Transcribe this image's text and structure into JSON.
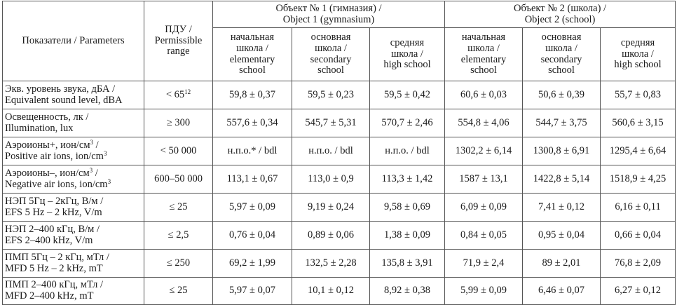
{
  "header": {
    "indicator": "Показатели / Parameters",
    "limit": [
      "ПДУ /",
      "Permissible",
      "range"
    ],
    "object1": [
      "Объект № 1 (гимназия) /",
      "Object 1 (gymnasium)"
    ],
    "object2": [
      "Объект № 2 (школа) /",
      "Object 2 (school)"
    ],
    "levels": [
      [
        "начальная",
        "школа /",
        "elementary",
        "school"
      ],
      [
        "основная",
        "школа /",
        "secondary",
        "school"
      ],
      [
        "средняя",
        "школа /",
        "high school"
      ]
    ]
  },
  "rows": [
    {
      "p1": "Экв. уровень звука, дБА /",
      "p2": "Equivalent sound level, dBA",
      "limit": "< 65",
      "limit_sup": "12",
      "v": [
        "59,8 ± 0,37",
        "59,5 ± 0,23",
        "59,5 ± 0,42",
        "60,6 ± 0,03",
        "50,6 ± 0,39",
        "55,7 ± 0,83"
      ]
    },
    {
      "p1": "Освещенность, лк /",
      "p2": "Illumination, lux",
      "limit": "≥ 300",
      "limit_sup": "",
      "v": [
        "557,6 ± 0,34",
        "545,7 ± 5,31",
        "570,7 ± 2,46",
        "554,8 ± 4,06",
        "544,7 ± 3,75",
        "560,6 ± 3,15"
      ]
    },
    {
      "p1": "Аэроионы+, ион/см",
      "p1_sup": "3",
      "p1_end": " /",
      "p2": "Positive air ions, ion/cm",
      "p2_sup": "3",
      "limit": "< 50 000",
      "limit_sup": "",
      "v": [
        "н.п.о.* / bdl",
        "н.п.о. / bdl",
        "н.п.о. / bdl",
        "1302,2 ± 6,14",
        "1300,8 ± 6,91",
        "1295,4 ± 6,64"
      ]
    },
    {
      "p1": "Аэроионы–, ион/см",
      "p1_sup": "3",
      "p1_end": " /",
      "p2": "Negative air ions, ion/cm",
      "p2_sup": "3",
      "limit": "600–50 000",
      "limit_sup": "",
      "v": [
        "113,1 ± 0,67",
        "113,0 ± 0,9",
        "113,3 ± 1,42",
        "1587 ± 13,1",
        "1422,8 ± 5,14",
        "1518,9 ± 4,25"
      ]
    },
    {
      "p1": "НЭП 5Гц – 2кГц, В/м /",
      "p2": "EFS 5 Hz – 2 kHz, V/m",
      "limit": "≤ 25",
      "limit_sup": "",
      "v": [
        "5,97 ± 0,09",
        "9,19 ± 0,24",
        "9,58 ± 0,69",
        "6,09 ± 0,09",
        "7,41 ± 0,12",
        "6,16 ± 0,11"
      ]
    },
    {
      "p1": "НЭП 2–400 кГц, В/м /",
      "p2": "EFS 2–400 kHz, V/m",
      "limit": "≤ 2,5",
      "limit_sup": "",
      "v": [
        "0,76 ± 0,04",
        "0,89 ± 0,06",
        "1,38 ± 0,09",
        "0,84 ± 0,05",
        "0,95 ± 0,04",
        "0,66 ± 0,04"
      ]
    },
    {
      "p1": "ПМП 5Гц – 2 кГц, мТл /",
      "p2": "MFD 5 Hz – 2 kHz, mT",
      "limit": "≤ 250",
      "limit_sup": "",
      "v": [
        "69,2 ± 1,99",
        "132,5 ± 2,28",
        "135,8 ± 3,91",
        "71,9 ± 2,4",
        "89 ± 2,01",
        "76,8 ± 2,09"
      ]
    },
    {
      "p1": "ПМП 2–400 кГц, мТл /",
      "p2": "MFD 2–400 kHz, mT",
      "limit": "≤ 25",
      "limit_sup": "",
      "v": [
        "5,97 ± 0,07",
        "10,1 ± 0,12",
        "8,92 ± 0,38",
        "5,99 ± 0,09",
        "6,46 ± 0,07",
        "6,27 ± 0,12"
      ]
    }
  ]
}
